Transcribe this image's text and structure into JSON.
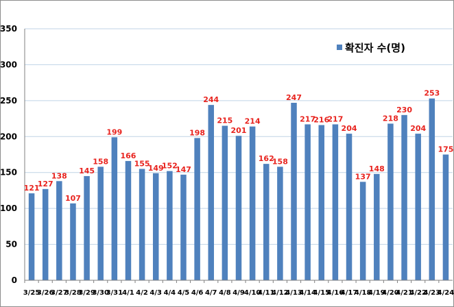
{
  "chart_data": {
    "type": "bar",
    "title": "",
    "xlabel": "",
    "ylabel": "",
    "ylim": [
      0,
      350
    ],
    "yticks": [
      0,
      50,
      100,
      150,
      200,
      250,
      300,
      350
    ],
    "grid": true,
    "legend_position": "top-right",
    "series": [
      {
        "name": "확진자 수(명)",
        "color": "#4f81bd",
        "values": [
          121,
          127,
          138,
          107,
          145,
          158,
          199,
          166,
          155,
          149,
          152,
          147,
          198,
          244,
          215,
          201,
          214,
          162,
          158,
          247,
          217,
          216,
          217,
          204,
          137,
          148,
          218,
          230,
          204,
          253,
          175
        ]
      }
    ],
    "categories": [
      "3/25",
      "3/26",
      "3/27",
      "3/28",
      "3/29",
      "3/30",
      "3/31",
      "4/1",
      "4/2",
      "4/3",
      "4/4",
      "4/5",
      "4/6",
      "4/7",
      "4/8",
      "4/9",
      "4/10",
      "4/11",
      "4/12",
      "4/13",
      "4/14",
      "4/15",
      "4/16",
      "4/17",
      "4/18",
      "4/19",
      "4/20",
      "4/21",
      "4/22",
      "4/23",
      "4/24"
    ],
    "label_color": "#e8231e",
    "grid_color": "#bfd3e6"
  }
}
